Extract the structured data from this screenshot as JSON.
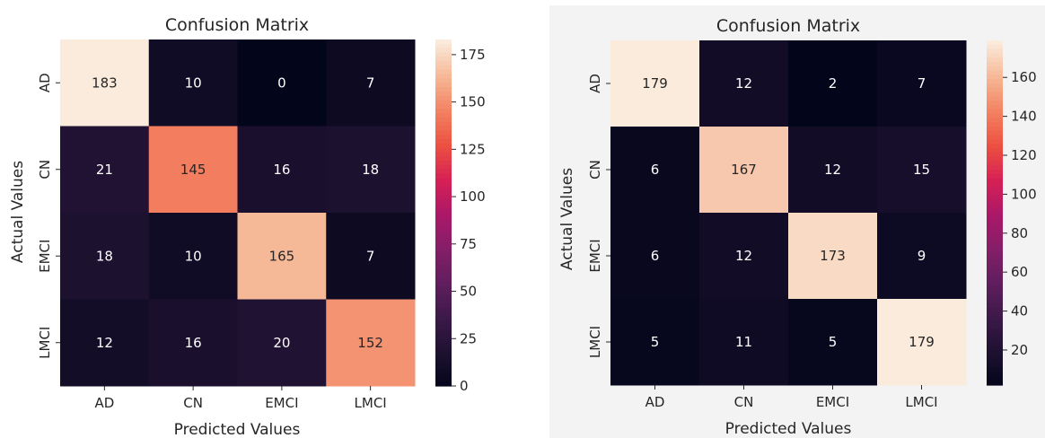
{
  "chart_data": [
    {
      "type": "heatmap",
      "title": "Confusion Matrix",
      "xlabel": "Predicted Values",
      "ylabel": "Actual Values",
      "x_categories": [
        "AD",
        "CN",
        "EMCI",
        "LMCI"
      ],
      "y_categories": [
        "AD",
        "CN",
        "EMCI",
        "LMCI"
      ],
      "values": [
        [
          183,
          10,
          0,
          7
        ],
        [
          21,
          145,
          16,
          18
        ],
        [
          18,
          10,
          165,
          7
        ],
        [
          12,
          16,
          20,
          152
        ]
      ],
      "color_range": [
        0,
        183
      ],
      "colorbar_ticks": [
        0,
        25,
        50,
        75,
        100,
        125,
        150,
        175
      ],
      "colormap": "rocket"
    },
    {
      "type": "heatmap",
      "title": "Confusion Matrix",
      "xlabel": "Predicted Values",
      "ylabel": "Actual Values",
      "x_categories": [
        "AD",
        "CN",
        "EMCI",
        "LMCI"
      ],
      "y_categories": [
        "AD",
        "CN",
        "EMCI",
        "LMCI"
      ],
      "values": [
        [
          179,
          12,
          2,
          7
        ],
        [
          6,
          167,
          12,
          15
        ],
        [
          6,
          12,
          173,
          9
        ],
        [
          5,
          11,
          5,
          179
        ]
      ],
      "color_range": [
        2,
        179
      ],
      "colorbar_ticks": [
        20,
        40,
        60,
        80,
        100,
        120,
        140,
        160
      ],
      "colormap": "rocket"
    }
  ]
}
